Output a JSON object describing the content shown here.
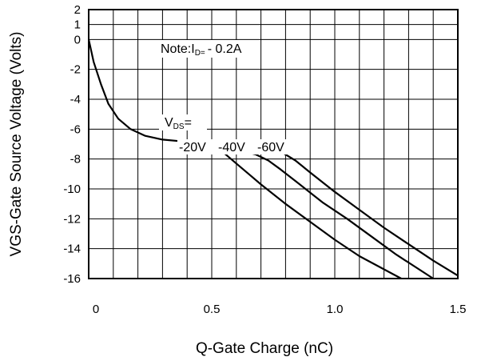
{
  "chart_data": {
    "type": "line",
    "title": "",
    "xlabel": "Q-Gate Charge (nC)",
    "ylabel": "VGS-Gate Source Voltage (Volts)",
    "xlim": [
      0,
      1.5
    ],
    "ylim": [
      -16,
      2
    ],
    "x_ticks": [
      {
        "value": 0,
        "label": "0"
      },
      {
        "value": 0.5,
        "label": "0.5"
      },
      {
        "value": 1.0,
        "label": "1.0"
      },
      {
        "value": 1.5,
        "label": "1.5"
      }
    ],
    "y_ticks": [
      {
        "value": 2,
        "label": "2"
      },
      {
        "value": 1,
        "label": "1"
      },
      {
        "value": 0,
        "label": "0"
      },
      {
        "value": -2,
        "label": "-2"
      },
      {
        "value": -4,
        "label": "-4"
      },
      {
        "value": -6,
        "label": "-6"
      },
      {
        "value": -8,
        "label": "-8"
      },
      {
        "value": -10,
        "label": "-10"
      },
      {
        "value": -12,
        "label": "-12"
      },
      {
        "value": -14,
        "label": "-14"
      },
      {
        "value": -16,
        "label": "-16"
      }
    ],
    "grid": true,
    "note": {
      "prefix": "Note:I",
      "subscript": "D=",
      "suffix": "- 0.2A"
    },
    "vds_label": {
      "main": "V",
      "subscript": "DS",
      "suffix": "="
    },
    "series_labels_text": {
      "s20": "-20V",
      "s40": "-40V",
      "s60": "-60V"
    },
    "common_curve": {
      "x": [
        0.0,
        0.02,
        0.05,
        0.08,
        0.12,
        0.17,
        0.23,
        0.3,
        0.4,
        0.48
      ],
      "y": [
        0.0,
        -1.5,
        -3.0,
        -4.3,
        -5.3,
        -6.0,
        -6.45,
        -6.7,
        -6.85,
        -6.95
      ]
    },
    "series": [
      {
        "label": "-20V",
        "x": [
          0.48,
          0.55,
          0.6,
          0.65,
          0.7,
          0.8,
          0.9,
          1.0,
          1.1,
          1.27
        ],
        "y": [
          -6.95,
          -7.6,
          -8.3,
          -9.0,
          -9.7,
          -11.0,
          -12.2,
          -13.4,
          -14.5,
          -16.0
        ]
      },
      {
        "label": "-40V",
        "x": [
          0.48,
          0.55,
          0.62,
          0.68,
          0.73,
          0.78,
          0.85,
          0.95,
          1.05,
          1.15,
          1.25,
          1.4
        ],
        "y": [
          -6.95,
          -7.2,
          -7.45,
          -7.7,
          -8.1,
          -8.7,
          -9.6,
          -10.9,
          -12.0,
          -13.2,
          -14.4,
          -16.0
        ]
      },
      {
        "label": "-60V",
        "x": [
          0.48,
          0.55,
          0.65,
          0.72,
          0.78,
          0.84,
          0.9,
          1.0,
          1.1,
          1.2,
          1.3,
          1.4,
          1.5
        ],
        "y": [
          -6.95,
          -7.05,
          -7.2,
          -7.3,
          -7.5,
          -8.1,
          -8.9,
          -10.2,
          -11.4,
          -12.6,
          -13.7,
          -14.8,
          -15.8
        ]
      }
    ]
  }
}
